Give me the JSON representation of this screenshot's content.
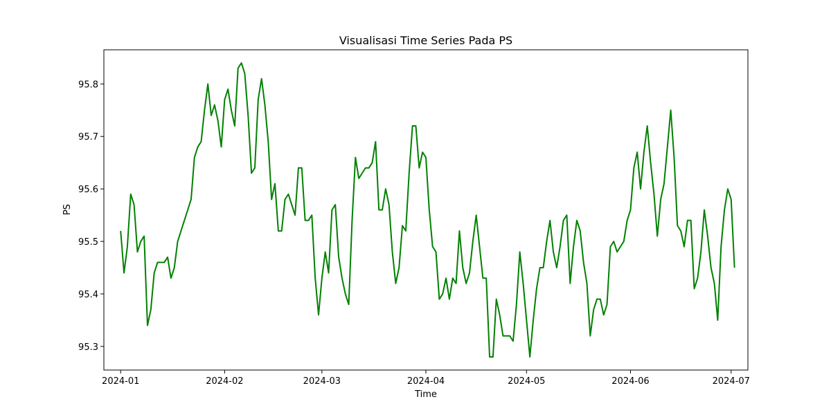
{
  "chart_data": {
    "type": "line",
    "title": "Visualisasi Time Series Pada PS",
    "xlabel": "Time",
    "ylabel": "PS",
    "x_start": "2024-01-01",
    "x_end": "2024-07-01",
    "x_ticks": [
      "2024-01-01",
      "2024-02-01",
      "2024-03-01",
      "2024-04-01",
      "2024-05-01",
      "2024-06-01",
      "2024-07-01"
    ],
    "x_tick_labels": [
      "2024-01",
      "2024-02",
      "2024-03",
      "2024-04",
      "2024-05",
      "2024-06",
      "2024-07"
    ],
    "xlim": [
      "2023-12-27",
      "2024-07-06"
    ],
    "y_ticks": [
      95.3,
      95.4,
      95.5,
      95.6,
      95.7,
      95.8
    ],
    "y_tick_labels": [
      "95.3",
      "95.4",
      "95.5",
      "95.6",
      "95.7",
      "95.8"
    ],
    "ylim": [
      95.255,
      95.865
    ],
    "grid": false,
    "legend": "none",
    "series": [
      {
        "color": "#008000",
        "values": [
          95.52,
          95.44,
          95.49,
          95.59,
          95.57,
          95.48,
          95.5,
          95.51,
          95.34,
          95.37,
          95.44,
          95.46,
          95.46,
          95.46,
          95.47,
          95.43,
          95.45,
          95.5,
          95.52,
          95.54,
          95.56,
          95.58,
          95.66,
          95.68,
          95.69,
          95.75,
          95.8,
          95.74,
          95.76,
          95.73,
          95.68,
          95.77,
          95.79,
          95.75,
          95.72,
          95.83,
          95.84,
          95.82,
          95.74,
          95.63,
          95.64,
          95.77,
          95.81,
          95.76,
          95.69,
          95.58,
          95.61,
          95.52,
          95.52,
          95.58,
          95.59,
          95.57,
          95.55,
          95.64,
          95.64,
          95.54,
          95.54,
          95.55,
          95.43,
          95.36,
          95.43,
          95.48,
          95.44,
          95.56,
          95.57,
          95.47,
          95.43,
          95.4,
          95.38,
          95.54,
          95.66,
          95.62,
          95.63,
          95.64,
          95.64,
          95.65,
          95.69,
          95.56,
          95.56,
          95.6,
          95.57,
          95.48,
          95.42,
          95.45,
          95.53,
          95.52,
          95.63,
          95.72,
          95.72,
          95.64,
          95.67,
          95.66,
          95.56,
          95.49,
          95.48,
          95.39,
          95.4,
          95.43,
          95.39,
          95.43,
          95.42,
          95.52,
          95.45,
          95.42,
          95.44,
          95.5,
          95.55,
          95.49,
          95.43,
          95.43,
          95.28,
          95.28,
          95.39,
          95.36,
          95.32,
          95.32,
          95.32,
          95.31,
          95.38,
          95.48,
          95.42,
          95.35,
          95.28,
          95.35,
          95.41,
          95.45,
          95.45,
          95.5,
          95.54,
          95.48,
          95.45,
          95.49,
          95.54,
          95.55,
          95.42,
          95.49,
          95.54,
          95.52,
          95.46,
          95.42,
          95.32,
          95.37,
          95.39,
          95.39,
          95.36,
          95.38,
          95.49,
          95.5,
          95.48,
          95.49,
          95.5,
          95.54,
          95.56,
          95.64,
          95.67,
          95.6,
          95.67,
          95.72,
          95.65,
          95.59,
          95.51,
          95.58,
          95.61,
          95.68,
          95.75,
          95.66,
          95.53,
          95.52,
          95.49,
          95.54,
          95.54,
          95.41,
          95.43,
          95.48,
          95.56,
          95.51,
          95.45,
          95.42,
          95.35,
          95.49,
          95.56,
          95.6,
          95.58,
          95.45
        ]
      }
    ]
  }
}
